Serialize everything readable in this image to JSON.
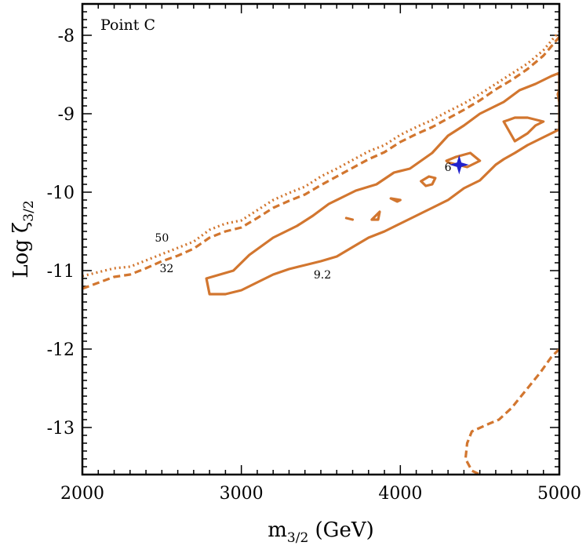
{
  "chart_data": {
    "type": "line",
    "title": "",
    "panel_label": "Point C",
    "xlabel": "m",
    "xlabel_sub": "3/2",
    "xlabel_tail": " (GeV)",
    "ylabel": "Log ζ",
    "ylabel_sub": "3/2",
    "xlim": [
      2000,
      5000
    ],
    "ylim": [
      -13.6,
      -7.6
    ],
    "xticks": [
      2000,
      3000,
      4000,
      5000
    ],
    "yticks": [
      -8,
      -9,
      -10,
      -11,
      -12,
      -13
    ],
    "grid": false,
    "colors": {
      "contour": "#d2762f",
      "marker": "#2222cc",
      "axis": "#000000"
    },
    "best_fit": {
      "x": 4370,
      "y": -9.65
    },
    "series": [
      {
        "name": "50",
        "style": "dotted",
        "x": [
          2000,
          2200,
          2300,
          2400,
          2500,
          2600,
          2700,
          2800,
          2900,
          3000,
          3100,
          3200,
          3300,
          3400,
          3500,
          3600,
          3700,
          3800,
          3900,
          4000,
          4100,
          4200,
          4300,
          4400,
          4500,
          4600,
          4700,
          4800,
          4900,
          5000
        ],
        "y": [
          -11.07,
          -10.97,
          -10.95,
          -10.87,
          -10.79,
          -10.71,
          -10.63,
          -10.48,
          -10.4,
          -10.36,
          -10.23,
          -10.1,
          -10.01,
          -9.93,
          -9.8,
          -9.7,
          -9.59,
          -9.48,
          -9.4,
          -9.27,
          -9.17,
          -9.08,
          -8.97,
          -8.87,
          -8.75,
          -8.62,
          -8.49,
          -8.36,
          -8.19,
          -7.95
        ]
      },
      {
        "name": "32",
        "style": "dashed",
        "x": [
          2000,
          2200,
          2300,
          2400,
          2500,
          2600,
          2700,
          2800,
          2900,
          3000,
          3100,
          3200,
          3300,
          3400,
          3500,
          3600,
          3700,
          3800,
          3900,
          4000,
          4100,
          4200,
          4300,
          4400,
          4500,
          4600,
          4700,
          4800,
          4900,
          5000
        ],
        "y": [
          -11.23,
          -11.08,
          -11.05,
          -10.97,
          -10.88,
          -10.81,
          -10.72,
          -10.58,
          -10.5,
          -10.45,
          -10.33,
          -10.2,
          -10.11,
          -10.03,
          -9.91,
          -9.8,
          -9.69,
          -9.58,
          -9.49,
          -9.36,
          -9.26,
          -9.17,
          -9.06,
          -8.95,
          -8.83,
          -8.69,
          -8.57,
          -8.43,
          -8.26,
          -8.02
        ]
      },
      {
        "name": "9.2",
        "style": "solid",
        "closed": true,
        "x": [
          2780,
          2950,
          3050,
          3200,
          3350,
          3450,
          3550,
          3650,
          3720,
          3850,
          3960,
          4060,
          4200,
          4300,
          4400,
          4500,
          4550,
          4650,
          4750,
          4850,
          4950,
          5000,
          5000,
          4900,
          4800,
          4720,
          4650,
          4600,
          4550,
          4500,
          4450,
          4400,
          4300,
          4200,
          4150,
          4100,
          4000,
          3900,
          3800,
          3700,
          3600,
          3500,
          3400,
          3300,
          3200,
          3100,
          3000,
          2900,
          2800,
          2780
        ],
        "y": [
          -11.1,
          -11.0,
          -10.8,
          -10.58,
          -10.43,
          -10.3,
          -10.15,
          -10.05,
          -9.98,
          -9.9,
          -9.75,
          -9.7,
          -9.5,
          -9.28,
          -9.15,
          -9.0,
          -8.95,
          -8.85,
          -8.7,
          -8.62,
          -8.52,
          -8.48,
          -9.2,
          -9.3,
          -9.4,
          -9.5,
          -9.58,
          -9.65,
          -9.75,
          -9.85,
          -9.9,
          -9.95,
          -10.1,
          -10.2,
          -10.25,
          -10.3,
          -10.4,
          -10.5,
          -10.58,
          -10.7,
          -10.82,
          -10.88,
          -10.93,
          -10.98,
          -11.05,
          -11.15,
          -11.25,
          -11.3,
          -11.3,
          -11.1
        ]
      }
    ],
    "islands": [
      {
        "x": [
          4130,
          4180,
          4220,
          4200,
          4160,
          4130
        ],
        "y": [
          -9.86,
          -9.8,
          -9.82,
          -9.9,
          -9.92,
          -9.86
        ]
      },
      {
        "x": [
          3940,
          4000,
          3980,
          3940
        ],
        "y": [
          -10.08,
          -10.1,
          -10.12,
          -10.08
        ]
      },
      {
        "x": [
          3820,
          3870,
          3860,
          3820
        ],
        "y": [
          -10.35,
          -10.25,
          -10.35,
          -10.35
        ]
      },
      {
        "x": [
          3660,
          3700
        ],
        "y": [
          -10.33,
          -10.35
        ]
      },
      {
        "x": [
          4290,
          4350,
          4440,
          4500,
          4420,
          4300,
          4290
        ],
        "y": [
          -9.6,
          -9.55,
          -9.5,
          -9.6,
          -9.68,
          -9.62,
          -9.6
        ]
      },
      {
        "x": [
          4650,
          4680,
          4720,
          4800,
          4900,
          4850,
          4800,
          4720,
          4650
        ],
        "y": [
          -9.1,
          -9.08,
          -9.05,
          -9.05,
          -9.1,
          -9.15,
          -9.25,
          -9.35,
          -9.1
        ]
      },
      {
        "x": [
          5000,
          4990,
          5000
        ],
        "y": [
          -8.85,
          -8.75,
          -8.7
        ]
      }
    ],
    "lower_curve": {
      "style": "dashed",
      "x": [
        5000,
        4950,
        4880,
        4800,
        4700,
        4620,
        4560,
        4450,
        4420,
        4410,
        4450,
        4500
      ],
      "y": [
        -12.0,
        -12.1,
        -12.3,
        -12.5,
        -12.75,
        -12.9,
        -12.95,
        -13.05,
        -13.2,
        -13.4,
        -13.55,
        -13.6
      ]
    },
    "labels": [
      {
        "text": "50",
        "x": 2500,
        "y": -10.63
      },
      {
        "text": "32",
        "x": 2530,
        "y": -11.02
      },
      {
        "text": "9.2",
        "x": 3510,
        "y": -11.1
      },
      {
        "text": "6",
        "x": 4300,
        "y": -9.73
      }
    ]
  }
}
